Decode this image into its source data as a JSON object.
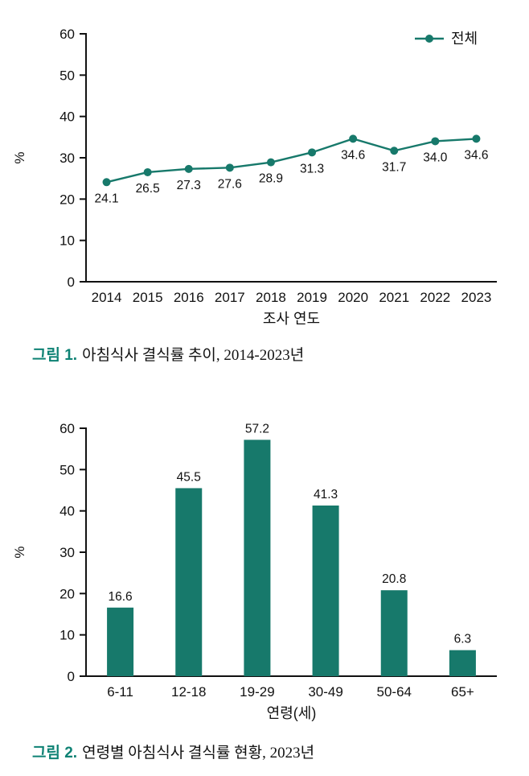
{
  "colors": {
    "accent": "#17796b",
    "caption_label": "#0e8274",
    "axis": "#111111"
  },
  "figure1": {
    "caption_label": "그림 1.",
    "caption_text": "아침식사 결식률 추이, 2014-2023년"
  },
  "figure2": {
    "caption_label": "그림 2.",
    "caption_text": "연령별 아침식사 결식률 현황, 2023년"
  },
  "chart_data": [
    {
      "type": "line",
      "title": "",
      "x": [
        "2014",
        "2015",
        "2016",
        "2017",
        "2018",
        "2019",
        "2020",
        "2021",
        "2022",
        "2023"
      ],
      "series": [
        {
          "name": "전체",
          "values": [
            24.1,
            26.5,
            27.3,
            27.6,
            28.9,
            31.3,
            34.6,
            31.7,
            34.0,
            34.6
          ]
        }
      ],
      "xlabel": "조사 연도",
      "ylabel": "%",
      "ylim": [
        0,
        60
      ],
      "ytick_step": 10,
      "grid": false,
      "legend_position": "top-right",
      "data_labels": true
    },
    {
      "type": "bar",
      "title": "",
      "categories": [
        "6-11",
        "12-18",
        "19-29",
        "30-49",
        "50-64",
        "65+"
      ],
      "values": [
        16.6,
        45.5,
        57.2,
        41.3,
        20.8,
        6.3
      ],
      "xlabel": "연령(세)",
      "ylabel": "%",
      "ylim": [
        0,
        60
      ],
      "ytick_step": 10,
      "grid": false,
      "legend_position": "none",
      "data_labels": true
    }
  ]
}
